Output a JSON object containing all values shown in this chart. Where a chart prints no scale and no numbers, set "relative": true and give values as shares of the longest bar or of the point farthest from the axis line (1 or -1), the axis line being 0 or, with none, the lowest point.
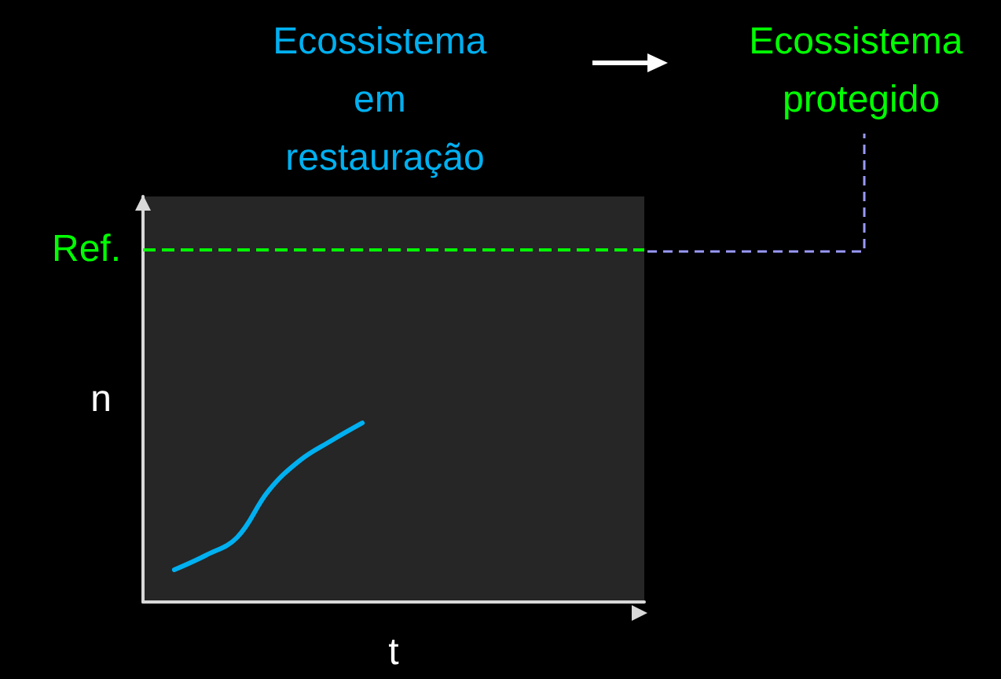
{
  "chart_data": {
    "type": "line",
    "relative": true,
    "xlabel": "t",
    "ylabel": "n",
    "marker": "none",
    "categories": [
      null,
      null,
      null,
      null,
      null,
      null,
      null,
      null,
      null,
      null,
      null,
      null,
      null,
      null,
      null,
      null,
      null
    ],
    "series": [
      {
        "color": "#00b0f0",
        "values": [
          null,
          0.18,
          0.26,
          0.36,
          0.62,
          0.79,
          0.9,
          1,
          null,
          null,
          null,
          null,
          null,
          null,
          null,
          null,
          null
        ]
      }
    ],
    "ref_lines": [
      {
        "axis": "y",
        "value": 1.97,
        "label": "Ref.",
        "color": "#00ff00",
        "line_style": "dashed"
      }
    ],
    "annotations": [
      "Ecossistema em restauração",
      "Ecossistema protegido"
    ]
  }
}
